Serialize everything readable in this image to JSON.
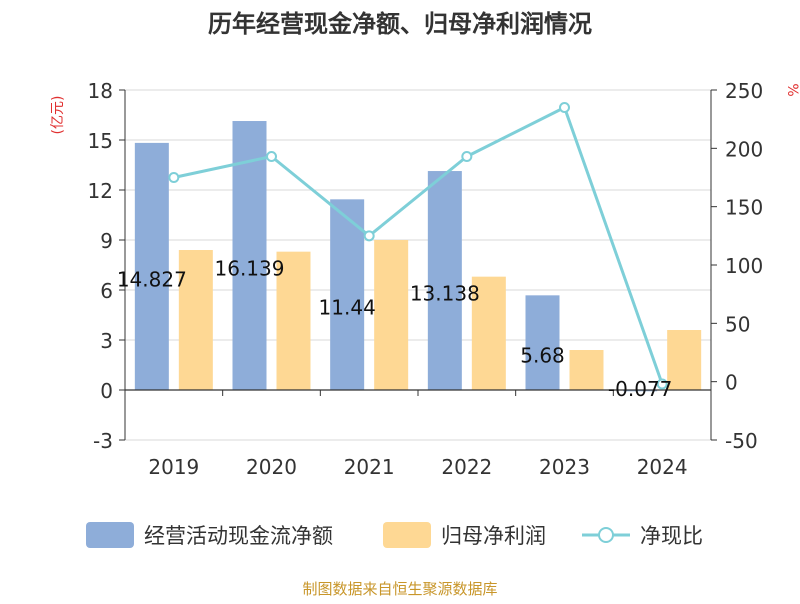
{
  "title": "历年经营现金净额、归母净利润情况",
  "footer": "制图数据来自恒生聚源数据库",
  "colors": {
    "ocf": "#8eadd9",
    "profit": "#fed894",
    "ratio": "#7ecfd8",
    "unit": "#e03030",
    "axis": "#333333",
    "grid": "#d9d9d9",
    "footer": "#c8962a"
  },
  "chart_data": {
    "type": "bar",
    "categories": [
      "2019",
      "2020",
      "2021",
      "2022",
      "2023",
      "2024"
    ],
    "y_left": {
      "unit_label": "(亿元)",
      "min": -3,
      "max": 18,
      "ticks": [
        -3,
        0,
        3,
        6,
        9,
        12,
        15,
        18
      ]
    },
    "y_right": {
      "unit_label": "%",
      "min": -50,
      "max": 250,
      "ticks": [
        -50,
        0,
        50,
        100,
        150,
        200,
        250
      ]
    },
    "series": [
      {
        "name": "经营活动现金流净额",
        "type": "bar",
        "axis": "left",
        "values": [
          14.827,
          16.139,
          11.44,
          13.138,
          5.68,
          -0.077
        ],
        "labels": [
          "14.827",
          "16.139",
          "11.44",
          "13.138",
          "5.68",
          "-0.077"
        ]
      },
      {
        "name": "归母净利润",
        "type": "bar",
        "axis": "left",
        "values": [
          8.4,
          8.3,
          9.0,
          6.8,
          2.4,
          3.6
        ]
      },
      {
        "name": "净现比",
        "type": "line",
        "axis": "right",
        "values": [
          175,
          193,
          125,
          193,
          235,
          -2
        ]
      }
    ],
    "grid": true,
    "legend_position": "bottom"
  }
}
